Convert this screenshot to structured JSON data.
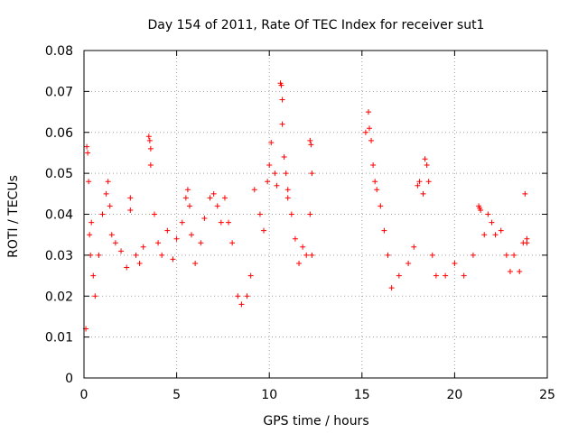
{
  "chart_data": {
    "type": "scatter",
    "title": "Day 154 of 2011, Rate Of TEC Index for receiver sut1",
    "xlabel": "GPS time / hours",
    "ylabel": "ROTI / TECUs",
    "xlim": [
      0,
      25
    ],
    "ylim": [
      0,
      0.08
    ],
    "xticks": [
      0,
      5,
      10,
      15,
      20,
      25
    ],
    "yticks": [
      0,
      0.01,
      0.02,
      0.03,
      0.04,
      0.05,
      0.06,
      0.07,
      0.08
    ],
    "xtick_labels": [
      "0",
      "5",
      "10",
      "15",
      "20",
      "25"
    ],
    "ytick_labels": [
      "0",
      "0.01",
      "0.02",
      "0.03",
      "0.04",
      "0.05",
      "0.06",
      "0.07",
      "0.08"
    ],
    "grid": true,
    "grid_style": "dotted",
    "marker": "plus",
    "point_color": "#ff0000",
    "series": [
      {
        "points": [
          [
            0.1,
            0.012
          ],
          [
            0.15,
            0.0565
          ],
          [
            0.2,
            0.055
          ],
          [
            0.25,
            0.048
          ],
          [
            0.3,
            0.035
          ],
          [
            0.35,
            0.03
          ],
          [
            0.4,
            0.038
          ],
          [
            0.5,
            0.025
          ],
          [
            0.6,
            0.02
          ],
          [
            0.8,
            0.03
          ],
          [
            1.0,
            0.04
          ],
          [
            1.2,
            0.045
          ],
          [
            1.3,
            0.048
          ],
          [
            1.4,
            0.042
          ],
          [
            1.5,
            0.035
          ],
          [
            1.7,
            0.033
          ],
          [
            2.0,
            0.031
          ],
          [
            2.3,
            0.027
          ],
          [
            2.5,
            0.044
          ],
          [
            2.5,
            0.041
          ],
          [
            2.8,
            0.03
          ],
          [
            3.0,
            0.028
          ],
          [
            3.2,
            0.032
          ],
          [
            3.5,
            0.059
          ],
          [
            3.55,
            0.058
          ],
          [
            3.6,
            0.056
          ],
          [
            3.6,
            0.052
          ],
          [
            3.8,
            0.04
          ],
          [
            4.0,
            0.033
          ],
          [
            4.2,
            0.03
          ],
          [
            4.5,
            0.036
          ],
          [
            4.8,
            0.029
          ],
          [
            5.0,
            0.034
          ],
          [
            5.3,
            0.038
          ],
          [
            5.5,
            0.044
          ],
          [
            5.6,
            0.046
          ],
          [
            5.7,
            0.042
          ],
          [
            5.8,
            0.035
          ],
          [
            6.0,
            0.028
          ],
          [
            6.3,
            0.033
          ],
          [
            6.5,
            0.039
          ],
          [
            6.8,
            0.044
          ],
          [
            7.0,
            0.045
          ],
          [
            7.2,
            0.042
          ],
          [
            7.4,
            0.038
          ],
          [
            7.6,
            0.044
          ],
          [
            7.8,
            0.038
          ],
          [
            8.0,
            0.033
          ],
          [
            8.3,
            0.02
          ],
          [
            8.5,
            0.018
          ],
          [
            8.8,
            0.02
          ],
          [
            9.0,
            0.025
          ],
          [
            9.2,
            0.046
          ],
          [
            9.5,
            0.04
          ],
          [
            9.7,
            0.036
          ],
          [
            9.9,
            0.048
          ],
          [
            10.0,
            0.052
          ],
          [
            10.1,
            0.0575
          ],
          [
            10.3,
            0.05
          ],
          [
            10.4,
            0.047
          ],
          [
            10.6,
            0.072
          ],
          [
            10.65,
            0.0715
          ],
          [
            10.7,
            0.068
          ],
          [
            10.7,
            0.062
          ],
          [
            10.8,
            0.054
          ],
          [
            10.9,
            0.05
          ],
          [
            11.0,
            0.046
          ],
          [
            11.0,
            0.044
          ],
          [
            11.2,
            0.04
          ],
          [
            11.4,
            0.034
          ],
          [
            11.6,
            0.028
          ],
          [
            11.8,
            0.032
          ],
          [
            12.0,
            0.03
          ],
          [
            12.2,
            0.058
          ],
          [
            12.25,
            0.057
          ],
          [
            12.3,
            0.05
          ],
          [
            12.2,
            0.04
          ],
          [
            12.3,
            0.03
          ],
          [
            15.2,
            0.06
          ],
          [
            15.35,
            0.065
          ],
          [
            15.4,
            0.061
          ],
          [
            15.5,
            0.058
          ],
          [
            15.6,
            0.052
          ],
          [
            15.7,
            0.048
          ],
          [
            15.8,
            0.046
          ],
          [
            16.0,
            0.042
          ],
          [
            16.2,
            0.036
          ],
          [
            16.4,
            0.03
          ],
          [
            16.6,
            0.022
          ],
          [
            17.0,
            0.025
          ],
          [
            17.5,
            0.028
          ],
          [
            17.8,
            0.032
          ],
          [
            18.0,
            0.047
          ],
          [
            18.1,
            0.048
          ],
          [
            18.3,
            0.045
          ],
          [
            18.4,
            0.0535
          ],
          [
            18.5,
            0.052
          ],
          [
            18.6,
            0.048
          ],
          [
            18.8,
            0.03
          ],
          [
            19.0,
            0.025
          ],
          [
            19.5,
            0.025
          ],
          [
            20.0,
            0.028
          ],
          [
            20.5,
            0.025
          ],
          [
            21.0,
            0.03
          ],
          [
            21.3,
            0.042
          ],
          [
            21.35,
            0.0415
          ],
          [
            21.4,
            0.041
          ],
          [
            21.6,
            0.035
          ],
          [
            21.8,
            0.04
          ],
          [
            22.0,
            0.038
          ],
          [
            22.2,
            0.035
          ],
          [
            22.5,
            0.036
          ],
          [
            22.8,
            0.03
          ],
          [
            23.0,
            0.026
          ],
          [
            23.2,
            0.03
          ],
          [
            23.5,
            0.026
          ],
          [
            23.7,
            0.033
          ],
          [
            23.8,
            0.045
          ],
          [
            23.9,
            0.034
          ],
          [
            23.9,
            0.033
          ]
        ]
      }
    ]
  }
}
